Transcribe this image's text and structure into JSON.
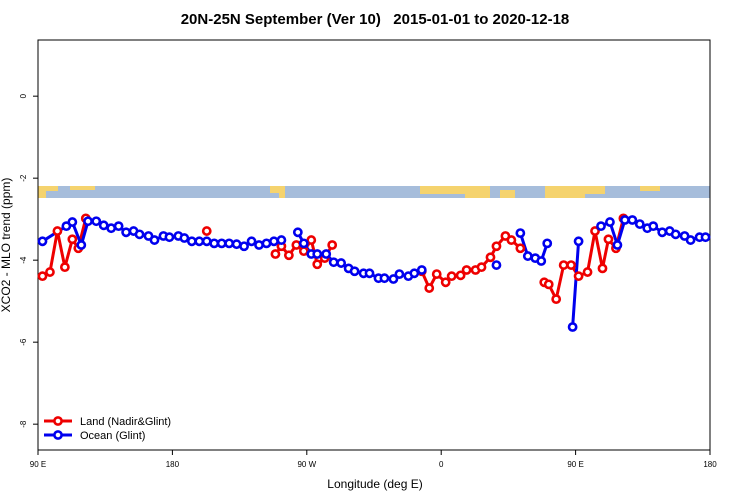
{
  "chart_data": {
    "type": "line",
    "title": "20N-25N September (Ver 10)   2015-01-01 to 2020-12-18",
    "xlabel": "Longitude (deg E)",
    "ylabel": "XCO2 - MLO trend (ppm)",
    "xlim": [
      90,
      540
    ],
    "ylim": [
      -8.63,
      1.37
    ],
    "xticks": [
      {
        "value": 90,
        "label": "90 E"
      },
      180,
      {
        "value": 270,
        "label": "90 W"
      },
      {
        "value": 360,
        "label": "0"
      },
      {
        "value": 450,
        "label": "90 E"
      },
      {
        "value": 540,
        "label": "180"
      }
    ],
    "yticks": [
      0,
      -2,
      -4,
      -6,
      -8
    ],
    "legend": "bottomleft",
    "series": [
      {
        "name": "Land (Nadir&Glint)",
        "color": "#ee0000",
        "x": [
          93,
          98,
          103,
          108,
          113,
          117,
          122,
          null,
          203,
          null,
          249,
          253,
          258,
          263,
          268,
          273,
          277,
          282,
          287,
          null,
          347,
          352,
          357,
          363,
          367,
          373,
          377,
          383,
          387,
          393,
          397,
          403,
          407,
          413,
          null,
          429,
          432,
          437,
          442,
          447,
          452,
          458,
          463,
          468,
          472,
          477,
          482
        ],
        "values": [
          -4.39,
          -4.29,
          -3.29,
          -4.17,
          -3.49,
          -3.71,
          -2.98,
          null,
          -3.29,
          null,
          -3.85,
          -3.66,
          -3.88,
          -3.63,
          -3.78,
          -3.51,
          -4.1,
          -3.95,
          -3.63,
          null,
          -4.27,
          -4.68,
          -4.34,
          -4.54,
          -4.39,
          -4.37,
          -4.24,
          -4.24,
          -4.17,
          -3.93,
          -3.66,
          -3.41,
          -3.51,
          -3.71,
          null,
          -4.54,
          -4.59,
          -4.95,
          -4.12,
          -4.12,
          -4.39,
          -4.29,
          -3.29,
          -4.2,
          -3.49,
          -3.71,
          -2.98
        ]
      },
      {
        "name": "Ocean (Glint)",
        "color": "#0000ee",
        "x": [
          93,
          109,
          113,
          119,
          123.5,
          129,
          134,
          139,
          144,
          149,
          154,
          158,
          164,
          168,
          174,
          178,
          184,
          188,
          193,
          198,
          203,
          208,
          213,
          218,
          223,
          228,
          233,
          238,
          243,
          248,
          253,
          null,
          264,
          268,
          273,
          277,
          283,
          288,
          293,
          298,
          302,
          308,
          312,
          318,
          322,
          328,
          332,
          338,
          342,
          347,
          null,
          397,
          null,
          413,
          418,
          423,
          427,
          431,
          null,
          448,
          452,
          null,
          467,
          473,
          478,
          483,
          488,
          493,
          498,
          502,
          508,
          513,
          517,
          523,
          527,
          533,
          537
        ],
        "values": [
          -3.54,
          -3.17,
          -3.07,
          -3.63,
          -3.05,
          -3.05,
          -3.15,
          -3.22,
          -3.17,
          -3.32,
          -3.29,
          -3.37,
          -3.41,
          -3.51,
          -3.41,
          -3.44,
          -3.41,
          -3.46,
          -3.54,
          -3.54,
          -3.54,
          -3.59,
          -3.59,
          -3.59,
          -3.61,
          -3.66,
          -3.54,
          -3.63,
          -3.59,
          -3.54,
          -3.51,
          null,
          -3.32,
          -3.59,
          -3.85,
          -3.85,
          -3.85,
          -4.05,
          -4.07,
          -4.2,
          -4.27,
          -4.32,
          -4.32,
          -4.44,
          -4.44,
          -4.46,
          -4.34,
          -4.39,
          -4.32,
          -4.24,
          null,
          -4.12,
          null,
          -3.34,
          -3.9,
          -3.95,
          -4.02,
          -3.59,
          null,
          -5.63,
          -3.54,
          null,
          -3.17,
          -3.07,
          -3.63,
          -3.02,
          -3.02,
          -3.12,
          -3.22,
          -3.17,
          -3.32,
          -3.29,
          -3.37,
          -3.41,
          -3.51,
          -3.44,
          -3.44
        ]
      }
    ]
  }
}
